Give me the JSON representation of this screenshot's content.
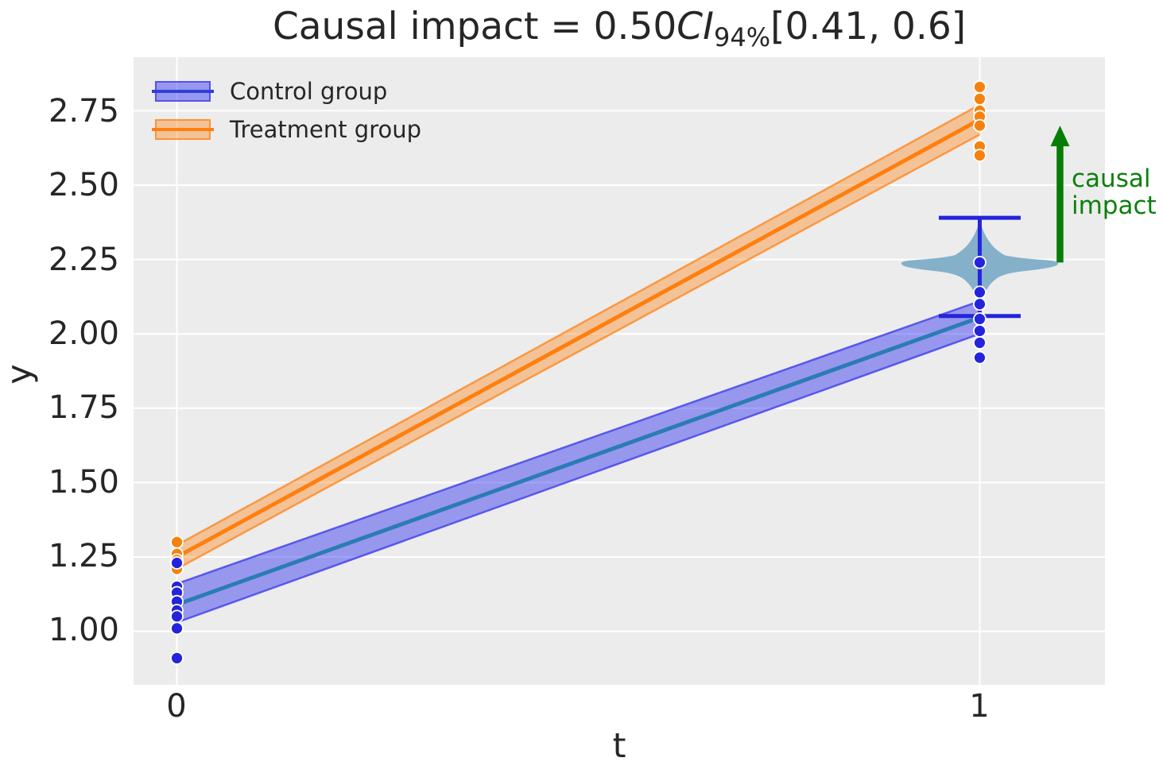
{
  "title": {
    "text_before": "Causal impact = 0.50",
    "ci": "CI",
    "ci_subscript": "94%",
    "text_after": "[0.41, 0.6]"
  },
  "legend": {
    "control": {
      "label": "Control group"
    },
    "treatment": {
      "label": "Treatment group"
    }
  },
  "axes": {
    "xlabel": "t",
    "ylabel": "y",
    "x_tick_labels": [
      "0",
      "1"
    ],
    "y_tick_labels": [
      "1.00",
      "1.25",
      "1.50",
      "1.75",
      "2.00",
      "2.25",
      "2.50",
      "2.75"
    ]
  },
  "annotation": {
    "line1": "causal",
    "line2": "impact"
  },
  "colors": {
    "plot_bg": "#ececec",
    "grid": "#ffffff",
    "text": "#262626",
    "control_scatter": "#2424dc",
    "control_line": "#2b7cb5",
    "control_legend_line": "#2e3fd8",
    "control_band": "rgba(25,25,240,0.40)",
    "control_band_edge": "rgba(70,70,235,0.85)",
    "treatment_scatter": "#f5820e",
    "treatment_line": "#ff7f0e",
    "treatment_legend_line": "#ff7f0e",
    "treatment_band": "rgba(255,127,14,0.38)",
    "treatment_band_edge": "rgba(255,127,14,0.70)",
    "violin": "#84b0ca",
    "errorbar": "#2424dc",
    "arrow": "#067d06",
    "annotation_text": "#0b800b"
  },
  "chart_data": {
    "type": "scatter",
    "subtype": "difference-in-differences causal impact plot (scatter + fitted lines with CI bands + counterfactual violin)",
    "title": "Causal impact = 0.50 CI_94% [0.41, 0.6]",
    "xlabel": "t",
    "ylabel": "y",
    "xlim": [
      -0.054,
      1.156
    ],
    "ylim": [
      0.82,
      2.93
    ],
    "x_ticks": [
      0,
      1
    ],
    "y_ticks": [
      1.0,
      1.25,
      1.5,
      1.75,
      2.0,
      2.25,
      2.5,
      2.75
    ],
    "grid": true,
    "legend_position": "upper-left",
    "scatter": [
      {
        "name": "Control group",
        "color_key": "control",
        "points": [
          [
            0,
            1.23
          ],
          [
            0,
            1.15
          ],
          [
            0,
            1.13
          ],
          [
            0,
            1.1
          ],
          [
            0,
            1.07
          ],
          [
            0,
            1.05
          ],
          [
            0,
            1.01
          ],
          [
            0,
            0.91
          ],
          [
            1,
            2.24
          ],
          [
            1,
            2.14
          ],
          [
            1,
            2.1
          ],
          [
            1,
            2.05
          ],
          [
            1,
            2.01
          ],
          [
            1,
            1.97
          ],
          [
            1,
            1.92
          ]
        ]
      },
      {
        "name": "Treatment group",
        "color_key": "treatment",
        "points": [
          [
            0,
            1.3
          ],
          [
            0,
            1.26
          ],
          [
            0,
            1.24
          ],
          [
            0,
            1.21
          ],
          [
            1,
            2.83
          ],
          [
            1,
            2.79
          ],
          [
            1,
            2.75
          ],
          [
            1,
            2.73
          ],
          [
            1,
            2.7
          ],
          [
            1,
            2.63
          ],
          [
            1,
            2.6
          ]
        ]
      }
    ],
    "fit_lines": [
      {
        "name": "Treatment group fit",
        "color_key": "treatment",
        "x": [
          0,
          1
        ],
        "y": [
          1.25,
          2.72
        ],
        "band_lo": [
          1.21,
          2.67
        ],
        "band_hi": [
          1.29,
          2.77
        ]
      },
      {
        "name": "Control group fit",
        "color_key": "control",
        "x": [
          0,
          1
        ],
        "y": [
          1.09,
          2.055
        ],
        "band_lo": [
          1.03,
          2.0
        ],
        "band_hi": [
          1.16,
          2.11
        ]
      }
    ],
    "counterfactual": {
      "t": 1,
      "mean": 2.24,
      "ci94": [
        2.06,
        2.39
      ],
      "cap_halfwidth_t": 0.051,
      "violin": {
        "top": 2.38,
        "peak": 2.235,
        "bottom": 2.09,
        "max_halfwidth_t": 0.097
      }
    },
    "causal_impact_arrow": {
      "t": 1.1,
      "from_y": 2.24,
      "to_y": 2.7
    },
    "causal_impact": {
      "value": "0.50",
      "ci_level": "94%",
      "ci": [
        0.41,
        0.6
      ]
    }
  }
}
